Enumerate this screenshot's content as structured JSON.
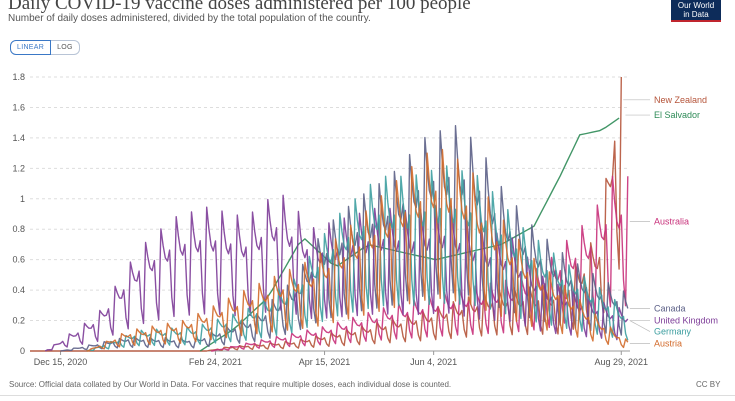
{
  "header": {
    "title": "Daily COVID-19 vaccine doses administered per 100 people",
    "subtitle": "Number of daily doses administered, divided by the total population of the country."
  },
  "logo": {
    "line1": "Our World",
    "line2": "in Data"
  },
  "scale_toggle": {
    "linear": "LINEAR",
    "log": "LOG"
  },
  "footer": {
    "source": "Source: Official data collated by Our World in Data. For vaccines that require multiple doses, each individual dose is counted.",
    "license": "CC BY"
  },
  "chart_data": {
    "type": "line",
    "x_axis_labels": [
      "Dec 15, 2020",
      "Feb 24, 2021",
      "Apr 15, 2021",
      "Jun 4, 2021",
      "Aug 29, 2021"
    ],
    "x_range": [
      "2020-12-01",
      "2021-09-02"
    ],
    "ylim": [
      0,
      1.8
    ],
    "yticks": [
      "0",
      "0.2",
      "0.4",
      "0.6",
      "0.8",
      "1",
      "1.2",
      "1.4",
      "1.6",
      "1.8"
    ],
    "grid": true,
    "series": [
      {
        "name": "New Zealand",
        "color": "#b5543a",
        "pattern": "weekly",
        "x": [
          "2020-12-01",
          "2021-02-20",
          "2021-03-01",
          "2021-04-01",
          "2021-05-01",
          "2021-06-01",
          "2021-07-01",
          "2021-08-01",
          "2021-08-20",
          "2021-08-25",
          "2021-08-29"
        ],
        "y": [
          0,
          0,
          0.02,
          0.05,
          0.12,
          0.2,
          0.3,
          0.32,
          0.6,
          1.2,
          1.65
        ]
      },
      {
        "name": "El Salvador",
        "color": "#2e8b57",
        "pattern": "smooth",
        "x": [
          "2021-02-17",
          "2021-03-05",
          "2021-03-20",
          "2021-04-05",
          "2021-04-20",
          "2021-05-05",
          "2021-05-20",
          "2021-06-05",
          "2021-06-20",
          "2021-07-05",
          "2021-07-20",
          "2021-08-01",
          "2021-08-10",
          "2021-08-20",
          "2021-08-30"
        ],
        "y": [
          0,
          0.15,
          0.35,
          0.75,
          0.55,
          0.7,
          0.65,
          0.6,
          0.65,
          0.7,
          0.82,
          1.15,
          1.42,
          1.45,
          1.55
        ]
      },
      {
        "name": "Australia",
        "color": "#c8307a",
        "pattern": "weekly",
        "x": [
          "2021-02-22",
          "2021-03-15",
          "2021-04-15",
          "2021-05-15",
          "2021-06-15",
          "2021-07-10",
          "2021-07-25",
          "2021-08-05",
          "2021-08-15",
          "2021-08-25",
          "2021-09-01"
        ],
        "y": [
          0,
          0.05,
          0.12,
          0.22,
          0.3,
          0.35,
          0.42,
          0.55,
          0.65,
          0.85,
          0.85
        ]
      },
      {
        "name": "Canada",
        "color": "#5b5f86",
        "pattern": "weekly",
        "x": [
          "2020-12-15",
          "2021-01-15",
          "2021-02-15",
          "2021-03-15",
          "2021-04-01",
          "2021-04-15",
          "2021-05-01",
          "2021-05-15",
          "2021-06-01",
          "2021-06-15",
          "2021-06-25",
          "2021-07-05",
          "2021-07-20",
          "2021-08-05",
          "2021-08-20",
          "2021-09-01"
        ],
        "y": [
          0,
          0.07,
          0.06,
          0.18,
          0.35,
          0.6,
          0.75,
          0.85,
          1.05,
          1.1,
          1.0,
          0.8,
          0.6,
          0.45,
          0.35,
          0.28
        ]
      },
      {
        "name": "United Kingdom",
        "color": "#7d3c98",
        "pattern": "weekly",
        "x": [
          "2020-12-08",
          "2021-01-01",
          "2021-01-20",
          "2021-02-05",
          "2021-02-20",
          "2021-03-10",
          "2021-03-25",
          "2021-04-10",
          "2021-04-25",
          "2021-05-10",
          "2021-05-25",
          "2021-06-10",
          "2021-06-25",
          "2021-07-10",
          "2021-07-25",
          "2021-08-10",
          "2021-08-25",
          "2021-09-01"
        ],
        "y": [
          0,
          0.18,
          0.5,
          0.65,
          0.7,
          0.65,
          0.78,
          0.6,
          0.65,
          0.7,
          0.68,
          0.72,
          0.6,
          0.55,
          0.35,
          0.28,
          0.22,
          0.2
        ]
      },
      {
        "name": "Germany",
        "color": "#3d9ea0",
        "pattern": "weekly",
        "x": [
          "2020-12-27",
          "2021-01-20",
          "2021-02-15",
          "2021-03-10",
          "2021-04-01",
          "2021-04-20",
          "2021-05-10",
          "2021-05-25",
          "2021-06-10",
          "2021-06-25",
          "2021-07-15",
          "2021-08-01",
          "2021-08-20",
          "2021-09-01"
        ],
        "y": [
          0,
          0.1,
          0.12,
          0.2,
          0.35,
          0.65,
          0.85,
          0.85,
          0.9,
          0.85,
          0.6,
          0.45,
          0.3,
          0.2
        ]
      },
      {
        "name": "Austria",
        "color": "#d26a2a",
        "pattern": "weekly",
        "x": [
          "2020-12-27",
          "2021-01-15",
          "2021-02-10",
          "2021-03-10",
          "2021-04-10",
          "2021-05-01",
          "2021-05-20",
          "2021-06-05",
          "2021-06-20",
          "2021-07-05",
          "2021-07-20",
          "2021-08-05",
          "2021-08-20",
          "2021-09-01"
        ],
        "y": [
          0,
          0.1,
          0.15,
          0.3,
          0.45,
          0.65,
          0.85,
          1.0,
          0.9,
          0.65,
          0.45,
          0.3,
          0.15,
          0.05
        ]
      }
    ]
  }
}
